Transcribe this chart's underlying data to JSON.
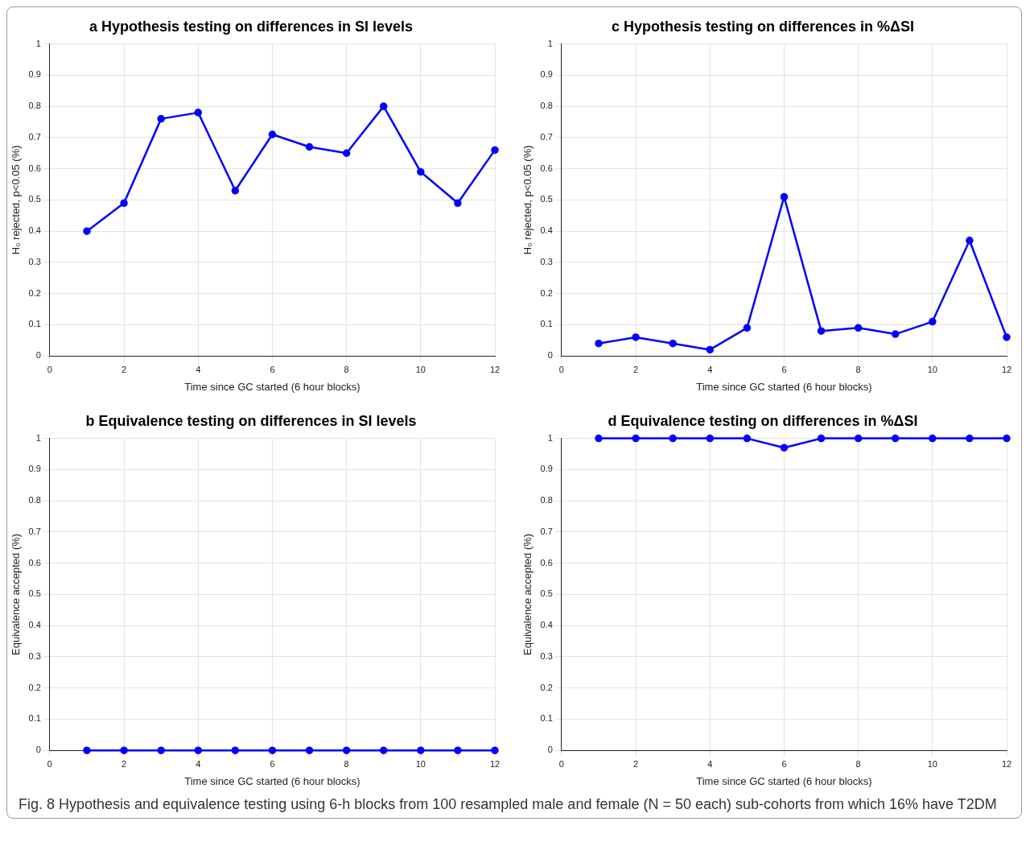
{
  "chart_data": [
    {
      "type": "line",
      "title": "a Hypothesis testing on differences in SI levels",
      "xlabel": "Time since GC started (6 hour blocks)",
      "ylabel": "H₀ rejected, p<0.05 (%)",
      "x": [
        1,
        2,
        3,
        4,
        5,
        6,
        7,
        8,
        9,
        10,
        11,
        12
      ],
      "series": [
        {
          "color": "#0000ff",
          "values": [
            0.4,
            0.49,
            0.76,
            0.78,
            0.53,
            0.71,
            0.67,
            0.65,
            0.8,
            0.59,
            0.49,
            0.66
          ]
        }
      ],
      "xlim": [
        0,
        12
      ],
      "xticks": [
        0,
        2,
        4,
        6,
        8,
        10,
        12
      ],
      "ylim": [
        0,
        1
      ],
      "yticks": [
        0,
        0.1,
        0.2,
        0.3,
        0.4,
        0.5,
        0.6,
        0.7,
        0.8,
        0.9,
        1
      ],
      "grid": true,
      "marker": "circle",
      "line_style": "solid",
      "annotations": [
        "Fig. 8 Hypothesis and equivalence testing using 6-h blocks from 100 resampled male and female (N = 50 each) sub-cohorts from which 16% have T2DM"
      ]
    },
    {
      "type": "line",
      "title": "c Hypothesis testing on differences in %ΔSI",
      "xlabel": "Time since GC started (6 hour blocks)",
      "ylabel": "H₀ rejected, p<0.05 (%)",
      "x": [
        1,
        2,
        3,
        4,
        5,
        6,
        7,
        8,
        9,
        10,
        11,
        12
      ],
      "series": [
        {
          "color": "#0000ff",
          "values": [
            0.04,
            0.06,
            0.04,
            0.02,
            0.09,
            0.51,
            0.08,
            0.09,
            0.07,
            0.11,
            0.37,
            0.06
          ]
        }
      ],
      "xlim": [
        0,
        12
      ],
      "xticks": [
        0,
        2,
        4,
        6,
        8,
        10,
        12
      ],
      "ylim": [
        0,
        1
      ],
      "yticks": [
        0,
        0.1,
        0.2,
        0.3,
        0.4,
        0.5,
        0.6,
        0.7,
        0.8,
        0.9,
        1
      ],
      "grid": true,
      "marker": "circle",
      "line_style": "solid"
    },
    {
      "type": "line",
      "title": "b Equivalence testing on differences in SI levels",
      "xlabel": "Time since GC started (6 hour blocks)",
      "ylabel": "Equivalence accepted (%)",
      "x": [
        1,
        2,
        3,
        4,
        5,
        6,
        7,
        8,
        9,
        10,
        11,
        12
      ],
      "series": [
        {
          "color": "#0000ff",
          "values": [
            0,
            0,
            0,
            0,
            0,
            0,
            0,
            0,
            0,
            0,
            0,
            0
          ]
        }
      ],
      "xlim": [
        0,
        12
      ],
      "xticks": [
        0,
        2,
        4,
        6,
        8,
        10,
        12
      ],
      "ylim": [
        0,
        1
      ],
      "yticks": [
        0,
        0.1,
        0.2,
        0.3,
        0.4,
        0.5,
        0.6,
        0.7,
        0.8,
        0.9,
        1
      ],
      "grid": true,
      "marker": "circle",
      "line_style": "solid"
    },
    {
      "type": "line",
      "title": "d Equivalence testing on differences in %ΔSI",
      "xlabel": "Time since GC started (6 hour blocks)",
      "ylabel": "Equivalence accepted (%)",
      "x": [
        1,
        2,
        3,
        4,
        5,
        6,
        7,
        8,
        9,
        10,
        11,
        12
      ],
      "series": [
        {
          "color": "#0000ff",
          "values": [
            1,
            1,
            1,
            1,
            1,
            0.97,
            1,
            1,
            1,
            1,
            1,
            1
          ]
        }
      ],
      "xlim": [
        0,
        12
      ],
      "xticks": [
        0,
        2,
        4,
        6,
        8,
        10,
        12
      ],
      "ylim": [
        0,
        1
      ],
      "yticks": [
        0,
        0.1,
        0.2,
        0.3,
        0.4,
        0.5,
        0.6,
        0.7,
        0.8,
        0.9,
        1
      ],
      "grid": true,
      "marker": "circle",
      "line_style": "solid"
    }
  ]
}
